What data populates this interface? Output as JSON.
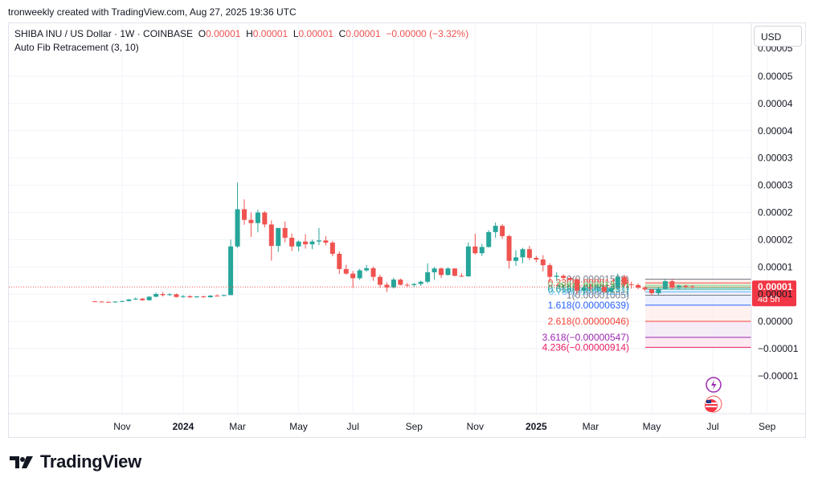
{
  "caption": "tronweekly created with TradingView.com, Aug 27, 2025 19:36 UTC",
  "legend": {
    "symbol": "SHIBA INU / US Dollar · 1W · COINBASE",
    "o_label": "O",
    "o_val": "0.00001",
    "h_label": "H",
    "h_val": "0.00001",
    "l_label": "L",
    "l_val": "0.00001",
    "c_label": "C",
    "c_val": "0.00001",
    "change": "−0.00000 (−3.32%)"
  },
  "indicator": "Auto Fib Retracement (3, 10)",
  "currency_button": "USD",
  "brand": "TradingView",
  "colors": {
    "up": "#26a69a",
    "down": "#ef5350",
    "price_badge": "#f23645",
    "fib_1618": "#2962ff",
    "fib_2618": "#f44336",
    "fib_3618": "#9c27b0",
    "fib_4236": "#e91e63"
  },
  "chart_data": {
    "type": "candlestick",
    "y_ticks": [
      "0.00005",
      "0.00004",
      "0.00004",
      "0.00003",
      "0.00003",
      "0.00002",
      "0.00002",
      "0.00001",
      "0.00001",
      "0.00000",
      "−0.00001",
      "−0.00001"
    ],
    "y_top_partial": "0.00005",
    "ylim": [
      -1.48e-05,
      5.35e-05
    ],
    "x_ticks": [
      {
        "label": "Nov",
        "t": -8,
        "bold": false
      },
      {
        "label": "2024",
        "t": 1,
        "bold": true
      },
      {
        "label": "Mar",
        "t": 9,
        "bold": false
      },
      {
        "label": "May",
        "t": 18,
        "bold": false
      },
      {
        "label": "Jul",
        "t": 26,
        "bold": false
      },
      {
        "label": "Sep",
        "t": 35,
        "bold": false
      },
      {
        "label": "Nov",
        "t": 44,
        "bold": false
      },
      {
        "label": "2025",
        "t": 53,
        "bold": true
      },
      {
        "label": "Mar",
        "t": 61,
        "bold": false
      },
      {
        "label": "May",
        "t": 70,
        "bold": false
      },
      {
        "label": "Jul",
        "t": 79,
        "bold": false
      },
      {
        "label": "Sep",
        "t": 87,
        "bold": false
      }
    ],
    "current_price": {
      "label": "0.00001",
      "countdown": "4d 5h",
      "value": 1.31e-05
    },
    "fib_levels": [
      {
        "ratio": "0",
        "label": "0(0.00001598)",
        "value": 1.598e-05,
        "color": "#787b86"
      },
      {
        "ratio": "0.236",
        "label": "0.236(0.00001458)",
        "value": 1.458e-05,
        "color": "#f44336"
      },
      {
        "ratio": "0.382",
        "label": "0.382(0.00001371)",
        "value": 1.371e-05,
        "color": "#81c784"
      },
      {
        "ratio": "0.5",
        "label": "0.5(0.00001301)",
        "value": 1.301e-05,
        "color": "#4caf50"
      },
      {
        "ratio": "0.618",
        "label": "0.618(0.00001231)",
        "value": 1.231e-05,
        "color": "#089981"
      },
      {
        "ratio": "0.786",
        "label": "0.786(0.00001131)",
        "value": 1.131e-05,
        "color": "#64b5f6"
      },
      {
        "ratio": "1",
        "label": "1(0.00001005)",
        "value": 1.005e-05,
        "color": "#787b86"
      },
      {
        "ratio": "1.618",
        "label": "1.618(0.00000639)",
        "value": 6.39e-06,
        "color": "#2962ff"
      },
      {
        "ratio": "2.618",
        "label": "2.618(0.00000046)",
        "value": 4.6e-07,
        "color": "#f44336"
      },
      {
        "ratio": "3.618",
        "label": "3.618(−0.00000547)",
        "value": -5.47e-06,
        "color": "#9c27b0"
      },
      {
        "ratio": "4.236",
        "label": "4.236(−0.00000914)",
        "value": -9.14e-06,
        "color": "#e91e63"
      }
    ],
    "candles": [
      {
        "t": -12,
        "o": 7.8e-06,
        "h": 8e-06,
        "l": 7.6e-06,
        "c": 7.7e-06
      },
      {
        "t": -11,
        "o": 7.7e-06,
        "h": 7.9e-06,
        "l": 7.5e-06,
        "c": 7.6e-06
      },
      {
        "t": -10,
        "o": 7.6e-06,
        "h": 7.8e-06,
        "l": 7.4e-06,
        "c": 7.5e-06
      },
      {
        "t": -9,
        "o": 7.5e-06,
        "h": 7.8e-06,
        "l": 7.3e-06,
        "c": 7.7e-06
      },
      {
        "t": -8,
        "o": 7.7e-06,
        "h": 8.1e-06,
        "l": 7.5e-06,
        "c": 7.9e-06
      },
      {
        "t": -7,
        "o": 7.9e-06,
        "h": 8.7e-06,
        "l": 7.8e-06,
        "c": 8.5e-06
      },
      {
        "t": -6,
        "o": 8.5e-06,
        "h": 9.2e-06,
        "l": 8.3e-06,
        "c": 8.8e-06
      },
      {
        "t": -5,
        "o": 8.8e-06,
        "h": 9e-06,
        "l": 8e-06,
        "c": 8.2e-06
      },
      {
        "t": -4,
        "o": 8.2e-06,
        "h": 9.7e-06,
        "l": 8.1e-06,
        "c": 9.5e-06
      },
      {
        "t": -3,
        "o": 9.5e-06,
        "h": 1.1e-05,
        "l": 9.3e-06,
        "c": 1.05e-05
      },
      {
        "t": -2,
        "o": 1.05e-05,
        "h": 1.12e-05,
        "l": 9.6e-06,
        "c": 1.01e-05
      },
      {
        "t": -1,
        "o": 1.01e-05,
        "h": 1.08e-05,
        "l": 9.8e-06,
        "c": 1.04e-05
      },
      {
        "t": 0,
        "o": 1.04e-05,
        "h": 1.07e-05,
        "l": 9.2e-06,
        "c": 9.4e-06
      },
      {
        "t": 1,
        "o": 9.4e-06,
        "h": 1.01e-05,
        "l": 9.1e-06,
        "c": 9.7e-06
      },
      {
        "t": 2,
        "o": 9.7e-06,
        "h": 1e-05,
        "l": 9e-06,
        "c": 9.3e-06
      },
      {
        "t": 3,
        "o": 9.3e-06,
        "h": 9.8e-06,
        "l": 9.1e-06,
        "c": 9.6e-06
      },
      {
        "t": 4,
        "o": 9.6e-06,
        "h": 9.9e-06,
        "l": 9.1e-06,
        "c": 9.3e-06
      },
      {
        "t": 5,
        "o": 9.3e-06,
        "h": 1.01e-05,
        "l": 9.2e-06,
        "c": 9.9e-06
      },
      {
        "t": 6,
        "o": 9.9e-06,
        "h": 1.04e-05,
        "l": 9.6e-06,
        "c": 9.8e-06
      },
      {
        "t": 7,
        "o": 9.8e-06,
        "h": 1.03e-05,
        "l": 9.7e-06,
        "c": 1.01e-05
      },
      {
        "t": 8,
        "o": 1.01e-05,
        "h": 3.05e-05,
        "l": 1e-05,
        "c": 2.8e-05
      },
      {
        "t": 9,
        "o": 2.8e-05,
        "h": 5.15e-05,
        "l": 2.75e-05,
        "c": 4.17e-05
      },
      {
        "t": 10,
        "o": 4.17e-05,
        "h": 4.53e-05,
        "l": 3.6e-05,
        "c": 3.78e-05
      },
      {
        "t": 11,
        "o": 3.78e-05,
        "h": 4.05e-05,
        "l": 3.15e-05,
        "c": 3.66e-05
      },
      {
        "t": 12,
        "o": 3.66e-05,
        "h": 4.15e-05,
        "l": 3.32e-05,
        "c": 4.05e-05
      },
      {
        "t": 13,
        "o": 4.05e-05,
        "h": 4.1e-05,
        "l": 3.5e-05,
        "c": 3.61e-05
      },
      {
        "t": 14,
        "o": 3.61e-05,
        "h": 3.76e-05,
        "l": 2.28e-05,
        "c": 2.82e-05
      },
      {
        "t": 15,
        "o": 2.82e-05,
        "h": 3.45e-05,
        "l": 2.6e-05,
        "c": 3.48e-05
      },
      {
        "t": 16,
        "o": 3.48e-05,
        "h": 3.72e-05,
        "l": 2.95e-05,
        "c": 3.12e-05
      },
      {
        "t": 17,
        "o": 3.12e-05,
        "h": 3.28e-05,
        "l": 2.63e-05,
        "c": 2.8e-05
      },
      {
        "t": 18,
        "o": 2.8e-05,
        "h": 3.02e-05,
        "l": 2.62e-05,
        "c": 2.98e-05
      },
      {
        "t": 19,
        "o": 2.98e-05,
        "h": 3.25e-05,
        "l": 2.72e-05,
        "c": 2.88e-05
      },
      {
        "t": 20,
        "o": 2.88e-05,
        "h": 3.05e-05,
        "l": 2.7e-05,
        "c": 2.98e-05
      },
      {
        "t": 21,
        "o": 2.98e-05,
        "h": 3.48e-05,
        "l": 2.85e-05,
        "c": 3.02e-05
      },
      {
        "t": 22,
        "o": 3.02e-05,
        "h": 3.18e-05,
        "l": 2.84e-05,
        "c": 2.94e-05
      },
      {
        "t": 23,
        "o": 2.94e-05,
        "h": 3e-05,
        "l": 2.44e-05,
        "c": 2.53e-05
      },
      {
        "t": 24,
        "o": 2.53e-05,
        "h": 2.62e-05,
        "l": 1.78e-05,
        "c": 1.97e-05
      },
      {
        "t": 25,
        "o": 1.97e-05,
        "h": 2.13e-05,
        "l": 1.76e-05,
        "c": 1.8e-05
      },
      {
        "t": 26,
        "o": 1.8e-05,
        "h": 1.9e-05,
        "l": 1.27e-05,
        "c": 1.63e-05
      },
      {
        "t": 27,
        "o": 1.63e-05,
        "h": 1.98e-05,
        "l": 1.57e-05,
        "c": 1.92e-05
      },
      {
        "t": 28,
        "o": 1.92e-05,
        "h": 2.12e-05,
        "l": 1.87e-05,
        "c": 2e-05
      },
      {
        "t": 29,
        "o": 2e-05,
        "h": 2.06e-05,
        "l": 1.53e-05,
        "c": 1.68e-05
      },
      {
        "t": 30,
        "o": 1.68e-05,
        "h": 1.76e-05,
        "l": 1.28e-05,
        "c": 1.39e-05
      },
      {
        "t": 31,
        "o": 1.39e-05,
        "h": 1.48e-05,
        "l": 1.12e-05,
        "c": 1.29e-05
      },
      {
        "t": 32,
        "o": 1.29e-05,
        "h": 1.65e-05,
        "l": 1.25e-05,
        "c": 1.58e-05
      },
      {
        "t": 33,
        "o": 1.58e-05,
        "h": 1.62e-05,
        "l": 1.36e-05,
        "c": 1.39e-05
      },
      {
        "t": 34,
        "o": 1.39e-05,
        "h": 1.45e-05,
        "l": 1.3e-05,
        "c": 1.38e-05
      },
      {
        "t": 35,
        "o": 1.38e-05,
        "h": 1.45e-05,
        "l": 1.3e-05,
        "c": 1.42e-05
      },
      {
        "t": 36,
        "o": 1.42e-05,
        "h": 1.54e-05,
        "l": 1.35e-05,
        "c": 1.5e-05
      },
      {
        "t": 37,
        "o": 1.5e-05,
        "h": 2.18e-05,
        "l": 1.45e-05,
        "c": 1.85e-05
      },
      {
        "t": 38,
        "o": 1.85e-05,
        "h": 2.05e-05,
        "l": 1.58e-05,
        "c": 1.99e-05
      },
      {
        "t": 39,
        "o": 1.99e-05,
        "h": 2.03e-05,
        "l": 1.64e-05,
        "c": 1.75e-05
      },
      {
        "t": 40,
        "o": 1.75e-05,
        "h": 2.03e-05,
        "l": 1.73e-05,
        "c": 1.99e-05
      },
      {
        "t": 41,
        "o": 1.99e-05,
        "h": 2e-05,
        "l": 1.7e-05,
        "c": 1.72e-05
      },
      {
        "t": 42,
        "o": 1.72e-05,
        "h": 1.82e-05,
        "l": 1.67e-05,
        "c": 1.7e-05
      },
      {
        "t": 43,
        "o": 1.7e-05,
        "h": 2.95e-05,
        "l": 1.68e-05,
        "c": 2.8e-05
      },
      {
        "t": 44,
        "o": 2.8e-05,
        "h": 3.27e-05,
        "l": 2.5e-05,
        "c": 2.55e-05
      },
      {
        "t": 45,
        "o": 2.55e-05,
        "h": 2.9e-05,
        "l": 2.45e-05,
        "c": 2.78e-05
      },
      {
        "t": 46,
        "o": 2.78e-05,
        "h": 3.4e-05,
        "l": 2.76e-05,
        "c": 3.33e-05
      },
      {
        "t": 47,
        "o": 3.33e-05,
        "h": 3.68e-05,
        "l": 3.12e-05,
        "c": 3.56e-05
      },
      {
        "t": 48,
        "o": 3.56e-05,
        "h": 3.62e-05,
        "l": 3.08e-05,
        "c": 3.18e-05
      },
      {
        "t": 49,
        "o": 3.18e-05,
        "h": 3.23e-05,
        "l": 1.98e-05,
        "c": 2.27e-05
      },
      {
        "t": 50,
        "o": 2.27e-05,
        "h": 2.66e-05,
        "l": 2.09e-05,
        "c": 2.4e-05
      },
      {
        "t": 51,
        "o": 2.4e-05,
        "h": 2.75e-05,
        "l": 2.18e-05,
        "c": 2.7e-05
      },
      {
        "t": 52,
        "o": 2.7e-05,
        "h": 2.82e-05,
        "l": 2.3e-05,
        "c": 2.38e-05
      },
      {
        "t": 53,
        "o": 2.38e-05,
        "h": 2.45e-05,
        "l": 2.22e-05,
        "c": 2.32e-05
      },
      {
        "t": 54,
        "o": 2.32e-05,
        "h": 2.48e-05,
        "l": 1.88e-05,
        "c": 2.11e-05
      },
      {
        "t": 55,
        "o": 2.11e-05,
        "h": 2.18e-05,
        "l": 1.5e-05,
        "c": 1.68e-05
      },
      {
        "t": 56,
        "o": 1.68e-05,
        "h": 1.85e-05,
        "l": 1.54e-05,
        "c": 1.72e-05
      },
      {
        "t": 57,
        "o": 1.72e-05,
        "h": 1.77e-05,
        "l": 1.6e-05,
        "c": 1.64e-05
      },
      {
        "t": 58,
        "o": 1.64e-05,
        "h": 1.68e-05,
        "l": 1.54e-05,
        "c": 1.58e-05
      },
      {
        "t": 59,
        "o": 1.58e-05,
        "h": 1.63e-05,
        "l": 1.04e-05,
        "c": 1.17e-05
      },
      {
        "t": 60,
        "o": 1.17e-05,
        "h": 1.34e-05,
        "l": 1.02e-05,
        "c": 1.29e-05
      },
      {
        "t": 61,
        "o": 1.29e-05,
        "h": 1.43e-05,
        "l": 1.17e-05,
        "c": 1.26e-05
      },
      {
        "t": 62,
        "o": 1.26e-05,
        "h": 1.38e-05,
        "l": 1.13e-05,
        "c": 1.31e-05
      },
      {
        "t": 63,
        "o": 1.31e-05,
        "h": 1.37e-05,
        "l": 1.08e-05,
        "c": 1.14e-05
      },
      {
        "t": 64,
        "o": 1.14e-05,
        "h": 1.32e-05,
        "l": 1.03e-05,
        "c": 1.27e-05
      },
      {
        "t": 65,
        "o": 1.27e-05,
        "h": 1.8e-05,
        "l": 1.24e-05,
        "c": 1.68e-05
      },
      {
        "t": 66,
        "o": 1.68e-05,
        "h": 1.75e-05,
        "l": 1.32e-05,
        "c": 1.41e-05
      },
      {
        "t": 67,
        "o": 1.41e-05,
        "h": 1.5e-05,
        "l": 1.25e-05,
        "c": 1.38e-05
      },
      {
        "t": 68,
        "o": 1.38e-05,
        "h": 1.44e-05,
        "l": 1.23e-05,
        "c": 1.28e-05
      },
      {
        "t": 69,
        "o": 1.28e-05,
        "h": 1.34e-05,
        "l": 1.16e-05,
        "c": 1.22e-05
      },
      {
        "t": 70,
        "o": 1.22e-05,
        "h": 1.25e-05,
        "l": 1.01e-05,
        "c": 1.08e-05
      },
      {
        "t": 71,
        "o": 1.08e-05,
        "h": 1.3e-05,
        "l": 1.02e-05,
        "c": 1.25e-05
      },
      {
        "t": 72,
        "o": 1.25e-05,
        "h": 1.6e-05,
        "l": 1.21e-05,
        "c": 1.52e-05
      },
      {
        "t": 73,
        "o": 1.52e-05,
        "h": 1.6e-05,
        "l": 1.22e-05,
        "c": 1.28e-05
      },
      {
        "t": 74,
        "o": 1.28e-05,
        "h": 1.4e-05,
        "l": 1.22e-05,
        "c": 1.35e-05
      },
      {
        "t": 75,
        "o": 1.35e-05,
        "h": 1.4e-05,
        "l": 1.26e-05,
        "c": 1.33e-05
      },
      {
        "t": 76,
        "o": 1.33e-05,
        "h": 1.38e-05,
        "l": 1.25e-05,
        "c": 1.31e-05
      }
    ]
  }
}
